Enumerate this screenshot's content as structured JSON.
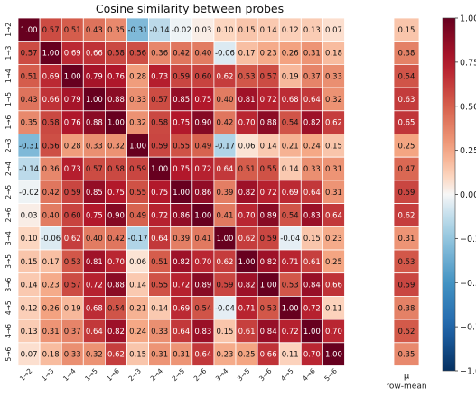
{
  "chart_data": {
    "type": "heatmap",
    "title": "Cosine similarity between probes",
    "labels": [
      "1→2",
      "1→3",
      "1→4",
      "1→5",
      "1→6",
      "2→3",
      "2→4",
      "2→5",
      "2→6",
      "3→4",
      "3→5",
      "3→6",
      "4→5",
      "4→6",
      "5→6"
    ],
    "matrix": [
      [
        1.0,
        0.57,
        0.51,
        0.43,
        0.35,
        -0.31,
        -0.14,
        -0.02,
        0.03,
        0.1,
        0.15,
        0.14,
        0.12,
        0.13,
        0.07
      ],
      [
        0.57,
        1.0,
        0.69,
        0.66,
        0.58,
        0.56,
        0.36,
        0.42,
        0.4,
        -0.06,
        0.17,
        0.23,
        0.26,
        0.31,
        0.18
      ],
      [
        0.51,
        0.69,
        1.0,
        0.79,
        0.76,
        0.28,
        0.73,
        0.59,
        0.6,
        0.62,
        0.53,
        0.57,
        0.19,
        0.37,
        0.33
      ],
      [
        0.43,
        0.66,
        0.79,
        1.0,
        0.88,
        0.33,
        0.57,
        0.85,
        0.75,
        0.4,
        0.81,
        0.72,
        0.68,
        0.64,
        0.32
      ],
      [
        0.35,
        0.58,
        0.76,
        0.88,
        1.0,
        0.32,
        0.58,
        0.75,
        0.9,
        0.42,
        0.7,
        0.88,
        0.54,
        0.82,
        0.62
      ],
      [
        -0.31,
        0.56,
        0.28,
        0.33,
        0.32,
        1.0,
        0.59,
        0.55,
        0.49,
        -0.17,
        0.06,
        0.14,
        0.21,
        0.24,
        0.15
      ],
      [
        -0.14,
        0.36,
        0.73,
        0.57,
        0.58,
        0.59,
        1.0,
        0.75,
        0.72,
        0.64,
        0.51,
        0.55,
        0.14,
        0.33,
        0.31
      ],
      [
        -0.02,
        0.42,
        0.59,
        0.85,
        0.75,
        0.55,
        0.75,
        1.0,
        0.86,
        0.39,
        0.82,
        0.72,
        0.69,
        0.64,
        0.31
      ],
      [
        0.03,
        0.4,
        0.6,
        0.75,
        0.9,
        0.49,
        0.72,
        0.86,
        1.0,
        0.41,
        0.7,
        0.89,
        0.54,
        0.83,
        0.64
      ],
      [
        0.1,
        -0.06,
        0.62,
        0.4,
        0.42,
        -0.17,
        0.64,
        0.39,
        0.41,
        1.0,
        0.62,
        0.59,
        -0.04,
        0.15,
        0.23
      ],
      [
        0.15,
        0.17,
        0.53,
        0.81,
        0.7,
        0.06,
        0.51,
        0.82,
        0.7,
        0.62,
        1.0,
        0.82,
        0.71,
        0.61,
        0.25
      ],
      [
        0.14,
        0.23,
        0.57,
        0.72,
        0.88,
        0.14,
        0.55,
        0.72,
        0.89,
        0.59,
        0.82,
        1.0,
        0.53,
        0.84,
        0.66
      ],
      [
        0.12,
        0.26,
        0.19,
        0.68,
        0.54,
        0.21,
        0.14,
        0.69,
        0.54,
        -0.04,
        0.71,
        0.53,
        1.0,
        0.72,
        0.11
      ],
      [
        0.13,
        0.31,
        0.37,
        0.64,
        0.82,
        0.24,
        0.33,
        0.64,
        0.83,
        0.15,
        0.61,
        0.84,
        0.72,
        1.0,
        0.7
      ],
      [
        0.07,
        0.18,
        0.33,
        0.32,
        0.62,
        0.15,
        0.31,
        0.31,
        0.64,
        0.23,
        0.25,
        0.66,
        0.11,
        0.7,
        1.0
      ]
    ],
    "row_mean": {
      "label": "μ",
      "sublabel": "row-mean",
      "values": [
        0.15,
        0.38,
        0.54,
        0.63,
        0.65,
        0.25,
        0.47,
        0.59,
        0.62,
        0.31,
        0.53,
        0.59,
        0.38,
        0.52,
        0.35
      ]
    },
    "colorbar": {
      "colormap": "RdBu_r",
      "range": [
        -1.0,
        1.0
      ],
      "ticks": [
        1.0,
        0.75,
        0.5,
        0.25,
        0.0,
        -0.25,
        -0.5,
        -0.75,
        -1.0
      ],
      "tick_labels": [
        "1.00",
        "0.75",
        "0.50",
        "0.25",
        "0.00",
        "−0.25",
        "−0.50",
        "−0.75",
        "−1.00"
      ]
    }
  }
}
